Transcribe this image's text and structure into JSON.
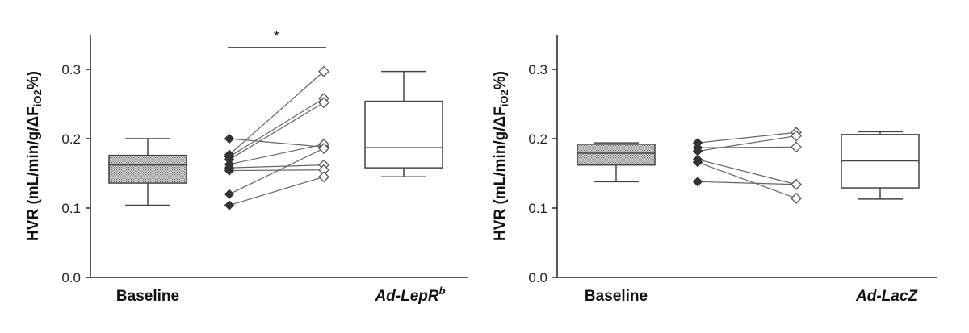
{
  "chart_data": [
    {
      "type": "box-and-paired-points",
      "ylabel": {
        "main": "HVR (mL/min/g/ΔF",
        "sub": "iO2",
        "tail": "%)"
      },
      "ylim": [
        0.0,
        0.35
      ],
      "yticks": [
        "0.0",
        "0.1",
        "0.2",
        "0.3"
      ],
      "categories": [
        "Baseline",
        "",
        "Ad-LepR"
      ],
      "category_superscript": {
        "2": "b"
      },
      "baseline_box": {
        "min": 0.104,
        "q1": 0.136,
        "median": 0.162,
        "q3": 0.176,
        "max": 0.2
      },
      "treatment_box": {
        "min": 0.145,
        "q1": 0.158,
        "median": 0.187,
        "q3": 0.254,
        "max": 0.297
      },
      "pairs": [
        [
          0.2,
          0.188
        ],
        [
          0.177,
          0.297
        ],
        [
          0.174,
          0.258
        ],
        [
          0.17,
          0.252
        ],
        [
          0.163,
          0.192
        ],
        [
          0.158,
          0.162
        ],
        [
          0.154,
          0.155
        ],
        [
          0.12,
          0.186
        ],
        [
          0.104,
          0.145
        ]
      ],
      "significance": "*"
    },
    {
      "type": "box-and-paired-points",
      "ylabel": {
        "main": "HVR (mL/min/g/ΔF",
        "sub": "iO2",
        "tail": "%)"
      },
      "ylim": [
        0.0,
        0.35
      ],
      "yticks": [
        "0.0",
        "0.1",
        "0.2",
        "0.3"
      ],
      "categories": [
        "Baseline",
        "",
        "Ad-LacZ"
      ],
      "category_superscript": {},
      "baseline_box": {
        "min": 0.138,
        "q1": 0.162,
        "median": 0.179,
        "q3": 0.192,
        "max": 0.194
      },
      "treatment_box": {
        "min": 0.113,
        "q1": 0.129,
        "median": 0.168,
        "q3": 0.206,
        "max": 0.21
      },
      "pairs": [
        [
          0.194,
          0.209
        ],
        [
          0.187,
          0.188
        ],
        [
          0.182,
          0.204
        ],
        [
          0.17,
          0.134
        ],
        [
          0.166,
          0.114
        ],
        [
          0.138,
          0.134
        ]
      ],
      "significance": ""
    }
  ]
}
